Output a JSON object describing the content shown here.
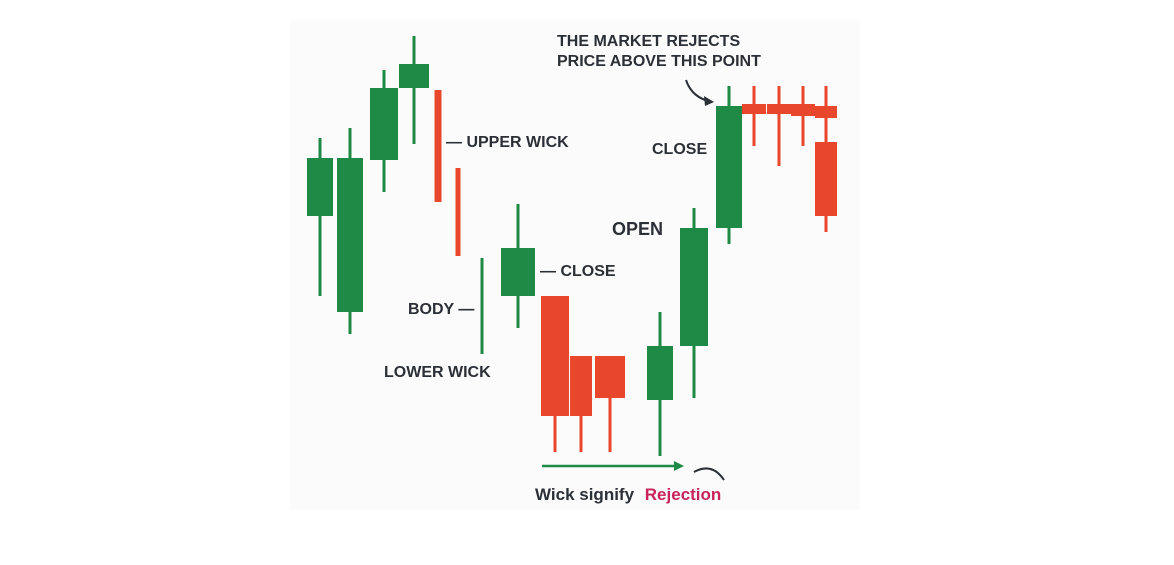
{
  "colors": {
    "bullish": "#1f8a45",
    "bearish": "#e8472b",
    "text": "#2b2f36",
    "accent": "#c8235a",
    "arrow": "#1f8a45",
    "arrow_dark": "#2b2f36"
  },
  "labels": {
    "upper_wick": "— UPPER WICK",
    "close_mid": "— CLOSE",
    "body": "BODY —",
    "lower_wick": "LOWER WICK",
    "open": "OPEN",
    "close_top": "CLOSE",
    "rejects_line1": "THE MARKET REJECTS",
    "rejects_line2": "PRICE ABOVE THIS POINT",
    "caption_prefix": "Wick signify",
    "caption_highlight": "Rejection"
  }
}
